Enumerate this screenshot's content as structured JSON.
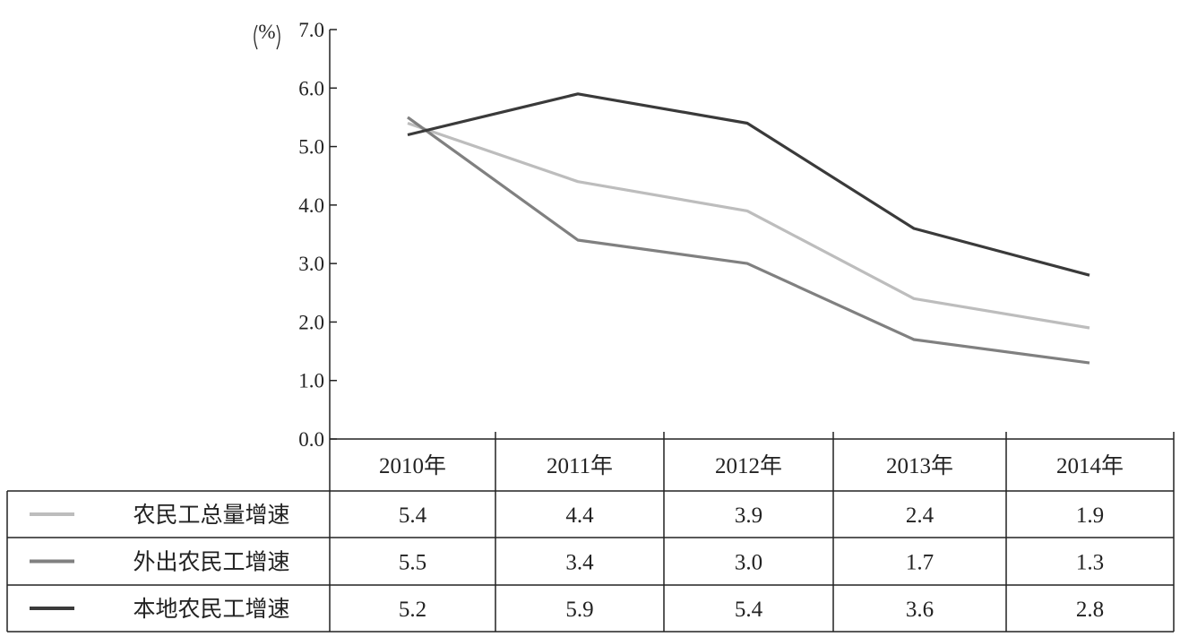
{
  "chart_data": {
    "type": "line",
    "ylabel": "%",
    "ylim": [
      0,
      7
    ],
    "yticks": [
      "0.0",
      "1.0",
      "2.0",
      "3.0",
      "4.0",
      "5.0",
      "6.0",
      "7.0"
    ],
    "categories": [
      "2010年",
      "2011年",
      "2012年",
      "2013年",
      "2014年"
    ],
    "series": [
      {
        "name": "农民工总量增速",
        "color": "#bdbdbd",
        "values": [
          5.4,
          4.4,
          3.9,
          2.4,
          1.9
        ],
        "labels": [
          "5.4",
          "4.4",
          "3.9",
          "2.4",
          "1.9"
        ]
      },
      {
        "name": "外出农民工增速",
        "color": "#808080",
        "values": [
          5.5,
          3.4,
          3.0,
          1.7,
          1.3
        ],
        "labels": [
          "5.5",
          "3.4",
          "3.0",
          "1.7",
          "1.3"
        ]
      },
      {
        "name": "本地农民工增速",
        "color": "#3a3a3a",
        "values": [
          5.2,
          5.9,
          5.4,
          3.6,
          2.8
        ],
        "labels": [
          "5.2",
          "5.9",
          "5.4",
          "3.6",
          "2.8"
        ]
      }
    ],
    "legend": "table-left",
    "grid": false
  }
}
